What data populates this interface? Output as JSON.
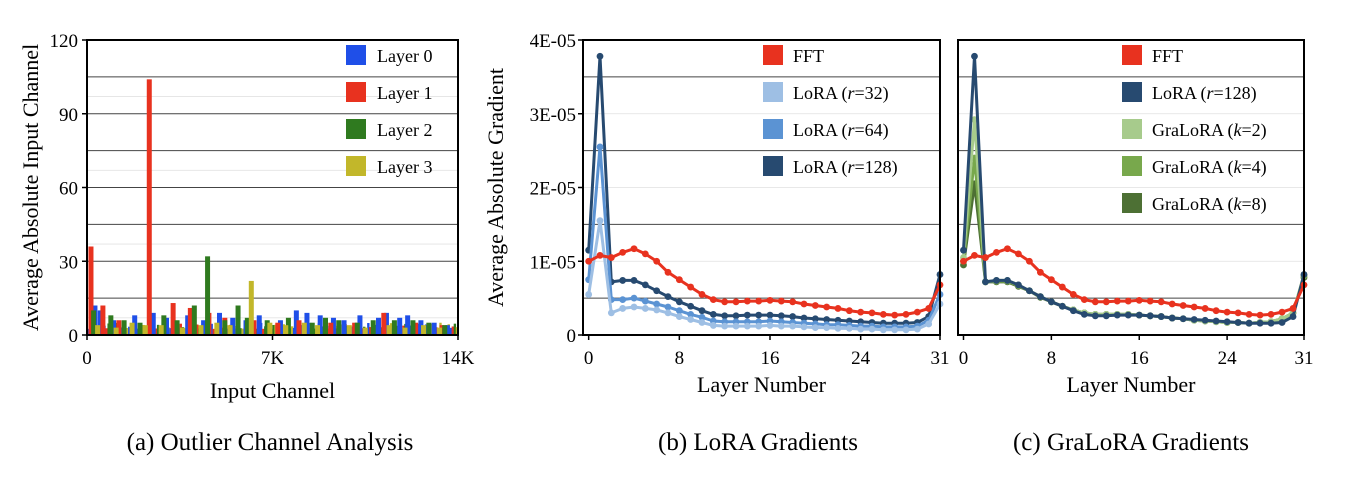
{
  "colors": {
    "layer0": "#1f4fe8",
    "layer1": "#e8321f",
    "layer2": "#2f7a1f",
    "layer3": "#c2b72a",
    "fft": "#e8321f",
    "lora32": "#9ebfe4",
    "lora64": "#5b93d3",
    "lora128": "#274a70",
    "gralora2": "#a7cb8c",
    "gralora4": "#78a84c",
    "gralora8": "#4d7034"
  },
  "captions": {
    "a": "(a)  Outlier Channel Analysis",
    "b": "(b)  LoRA Gradients",
    "c": "(c)  GraLoRA Gradients"
  },
  "chart_data": [
    {
      "type": "bar",
      "xlabel": "Input Channel",
      "ylabel": "Average Absolute Input Channel",
      "xlim": [
        0,
        14000
      ],
      "ylim": [
        0,
        120
      ],
      "x_ticks": [
        "0",
        "7K",
        "14K"
      ],
      "y_ticks": [
        "0",
        "30",
        "60",
        "90",
        "120"
      ],
      "grid": "horizontal",
      "legend_position": "top-right",
      "series": [
        {
          "name": "Layer 0",
          "color_key": "layer0",
          "x": [
            300,
            500,
            1000,
            1800,
            2500,
            3000,
            3800,
            4400,
            5000,
            5500,
            6000,
            6500,
            7300,
            7900,
            8300,
            8800,
            9300,
            9700,
            10300,
            11000,
            11300,
            11800,
            12100,
            12600,
            13100,
            13600
          ],
          "values": [
            12,
            10,
            6,
            8,
            9,
            7,
            8,
            6,
            9,
            7,
            6,
            8,
            6,
            10,
            9,
            8,
            7,
            6,
            8,
            7,
            9,
            7,
            8,
            6,
            5,
            4
          ]
        },
        {
          "name": "Layer 1",
          "color_key": "layer1",
          "x": [
            150,
            600,
            1200,
            2350,
            3250,
            3900,
            4600,
            5200,
            6300,
            7200,
            8000,
            9200,
            10100,
            11200,
            12400,
            13400
          ],
          "values": [
            36,
            12,
            6,
            104,
            13,
            11,
            9,
            7,
            6,
            5,
            6,
            5,
            5,
            9,
            5,
            4
          ]
        },
        {
          "name": "Layer 2",
          "color_key": "layer2",
          "x": [
            250,
            900,
            1400,
            2000,
            2900,
            3400,
            4050,
            4550,
            5200,
            5700,
            6050,
            6800,
            7600,
            8500,
            9000,
            9500,
            10200,
            10800,
            11600,
            12300,
            12900,
            13500
          ],
          "values": [
            10,
            8,
            6,
            5,
            8,
            6,
            12,
            32,
            6,
            12,
            7,
            6,
            7,
            5,
            7,
            6,
            5,
            6,
            6,
            6,
            5,
            4
          ]
        },
        {
          "name": "Layer 3",
          "color_key": "layer3",
          "x": [
            400,
            1100,
            1700,
            2200,
            2800,
            3600,
            4300,
            4900,
            5400,
            6200,
            6900,
            7500,
            8200,
            8700,
            9900,
            10500,
            11400,
            12000,
            12700,
            13300
          ],
          "values": [
            4,
            3,
            5,
            4,
            4,
            3,
            4,
            5,
            4,
            22,
            5,
            4,
            5,
            4,
            4,
            3,
            4,
            3,
            4,
            3
          ]
        }
      ]
    },
    {
      "type": "line",
      "xlabel": "Layer Number",
      "ylabel": "Average Absolute Gradient",
      "xlim": [
        -0.5,
        31
      ],
      "ylim": [
        0,
        4e-05
      ],
      "x_ticks": [
        0,
        8,
        16,
        24,
        31
      ],
      "y_ticks": [
        "0",
        "1E-05",
        "2E-05",
        "3E-05",
        "4E-05"
      ],
      "grid": "horizontal",
      "legend_position": "top-right",
      "x": [
        0,
        1,
        2,
        3,
        4,
        5,
        6,
        7,
        8,
        9,
        10,
        11,
        12,
        13,
        14,
        15,
        16,
        17,
        18,
        19,
        20,
        21,
        22,
        23,
        24,
        25,
        26,
        27,
        28,
        29,
        30,
        31
      ],
      "series": [
        {
          "name": "FFT",
          "color_key": "fft",
          "values": [
            1e-05,
            1.08e-05,
            1.05e-05,
            1.12e-05,
            1.17e-05,
            1.1e-05,
            1e-05,
            8.5e-06,
            7.5e-06,
            6.5e-06,
            5.5e-06,
            4.8e-06,
            4.5e-06,
            4.5e-06,
            4.6e-06,
            4.6e-06,
            4.7e-06,
            4.6e-06,
            4.5e-06,
            4.2e-06,
            4e-06,
            3.8e-06,
            3.6e-06,
            3.3e-06,
            3.1e-06,
            3e-06,
            2.8e-06,
            2.7e-06,
            2.8e-06,
            3.1e-06,
            3.6e-06,
            6.8e-06
          ]
        },
        {
          "name": "LoRA (r=32)",
          "label_pre": "LoRA (",
          "label_var": "r",
          "label_post": "=32)",
          "color_key": "lora32",
          "values": [
            5.5e-06,
            1.55e-05,
            3e-06,
            3.6e-06,
            3.8e-06,
            3.6e-06,
            3.4e-06,
            3e-06,
            2.5e-06,
            2.1e-06,
            1.7e-06,
            1.3e-06,
            1.2e-06,
            1.2e-06,
            1.2e-06,
            1.2e-06,
            1.3e-06,
            1.2e-06,
            1.2e-06,
            1.1e-06,
            1e-06,
            1e-06,
            9e-07,
            9e-07,
            8e-07,
            8e-07,
            7e-07,
            7e-07,
            7e-07,
            8e-07,
            1.5e-06,
            4.2e-06
          ]
        },
        {
          "name": "LoRA (r=64)",
          "label_pre": "LoRA (",
          "label_var": "r",
          "label_post": "=64)",
          "color_key": "lora64",
          "values": [
            7.5e-06,
            2.55e-05,
            4.8e-06,
            4.8e-06,
            5e-06,
            4.6e-06,
            4.2e-06,
            3.8e-06,
            3.3e-06,
            2.8e-06,
            2.4e-06,
            1.9e-06,
            1.8e-06,
            1.8e-06,
            1.8e-06,
            1.8e-06,
            1.9e-06,
            1.8e-06,
            1.7e-06,
            1.6e-06,
            1.5e-06,
            1.4e-06,
            1.4e-06,
            1.3e-06,
            1.2e-06,
            1.2e-06,
            1.1e-06,
            1.1e-06,
            1.1e-06,
            1.2e-06,
            2e-06,
            5.5e-06
          ]
        },
        {
          "name": "LoRA (r=128)",
          "label_pre": "LoRA (",
          "label_var": "r",
          "label_post": "=128)",
          "color_key": "lora128",
          "values": [
            1.15e-05,
            3.78e-05,
            7.2e-06,
            7.4e-06,
            7.4e-06,
            6.8e-06,
            6e-06,
            5.2e-06,
            4.5e-06,
            3.9e-06,
            3.3e-06,
            2.8e-06,
            2.6e-06,
            2.6e-06,
            2.7e-06,
            2.7e-06,
            2.7e-06,
            2.6e-06,
            2.5e-06,
            2.3e-06,
            2.2e-06,
            2.1e-06,
            2e-06,
            1.9e-06,
            1.8e-06,
            1.7e-06,
            1.6e-06,
            1.6e-06,
            1.6e-06,
            1.7e-06,
            2.5e-06,
            8.2e-06
          ]
        }
      ]
    },
    {
      "type": "line",
      "xlabel": "Layer Number",
      "ylabel": "",
      "xlim": [
        -0.5,
        31
      ],
      "ylim": [
        0,
        4e-05
      ],
      "x_ticks": [
        0,
        8,
        16,
        24,
        31
      ],
      "grid": "horizontal",
      "legend_position": "top-right",
      "x": [
        0,
        1,
        2,
        3,
        4,
        5,
        6,
        7,
        8,
        9,
        10,
        11,
        12,
        13,
        14,
        15,
        16,
        17,
        18,
        19,
        20,
        21,
        22,
        23,
        24,
        25,
        26,
        27,
        28,
        29,
        30,
        31
      ],
      "series": [
        {
          "name": "FFT",
          "color_key": "fft",
          "values": [
            1e-05,
            1.08e-05,
            1.05e-05,
            1.12e-05,
            1.17e-05,
            1.1e-05,
            1e-05,
            8.5e-06,
            7.5e-06,
            6.5e-06,
            5.5e-06,
            4.8e-06,
            4.5e-06,
            4.5e-06,
            4.6e-06,
            4.6e-06,
            4.7e-06,
            4.6e-06,
            4.5e-06,
            4.2e-06,
            4e-06,
            3.8e-06,
            3.6e-06,
            3.3e-06,
            3.1e-06,
            3e-06,
            2.8e-06,
            2.7e-06,
            2.8e-06,
            3.1e-06,
            3.6e-06,
            6.8e-06
          ]
        },
        {
          "name": "LoRA (r=128)",
          "label_pre": "LoRA (",
          "label_var": "r",
          "label_post": "=128)",
          "color_key": "lora128",
          "values": [
            1.15e-05,
            3.78e-05,
            7.2e-06,
            7.4e-06,
            7.4e-06,
            6.8e-06,
            6e-06,
            5.2e-06,
            4.5e-06,
            3.9e-06,
            3.3e-06,
            2.8e-06,
            2.6e-06,
            2.6e-06,
            2.7e-06,
            2.7e-06,
            2.7e-06,
            2.6e-06,
            2.5e-06,
            2.3e-06,
            2.2e-06,
            2.1e-06,
            2e-06,
            1.9e-06,
            1.8e-06,
            1.7e-06,
            1.6e-06,
            1.6e-06,
            1.6e-06,
            1.7e-06,
            2.5e-06,
            8.2e-06
          ]
        },
        {
          "name": "GraLoRA (k=2)",
          "label_pre": "GraLoRA (",
          "label_var": "k",
          "label_post": "=2)",
          "color_key": "gralora2",
          "values": [
            1.05e-05,
            2.92e-05,
            7.2e-06,
            7.4e-06,
            7.4e-06,
            6.8e-06,
            6e-06,
            5.2e-06,
            4.5e-06,
            3.9e-06,
            3.4e-06,
            3e-06,
            2.8e-06,
            2.8e-06,
            2.8e-06,
            2.8e-06,
            2.7e-06,
            2.6e-06,
            2.5e-06,
            2.3e-06,
            2.2e-06,
            2e-06,
            1.9e-06,
            1.8e-06,
            1.7e-06,
            1.7e-06,
            1.6e-06,
            1.7e-06,
            1.8e-06,
            2.2e-06,
            3e-06,
            8.2e-06
          ]
        },
        {
          "name": "GraLoRA (k=4)",
          "label_pre": "GraLoRA (",
          "label_var": "k",
          "label_post": "=4)",
          "color_key": "gralora4",
          "values": [
            1e-05,
            2.4e-05,
            7.2e-06,
            7.3e-06,
            7.3e-06,
            6.7e-06,
            6e-06,
            5.2e-06,
            4.5e-06,
            3.9e-06,
            3.4e-06,
            3e-06,
            2.8e-06,
            2.8e-06,
            2.8e-06,
            2.8e-06,
            2.7e-06,
            2.6e-06,
            2.5e-06,
            2.3e-06,
            2.2e-06,
            2e-06,
            1.9e-06,
            1.8e-06,
            1.7e-06,
            1.7e-06,
            1.6e-06,
            1.7e-06,
            1.8e-06,
            2.2e-06,
            3e-06,
            8e-06
          ]
        },
        {
          "name": "GraLoRA (k=8)",
          "label_pre": "GraLoRA (",
          "label_var": "k",
          "label_post": "=8)",
          "color_key": "gralora8",
          "values": [
            9.5e-06,
            2.05e-05,
            7.2e-06,
            7.2e-06,
            7.2e-06,
            6.6e-06,
            6e-06,
            5.1e-06,
            4.5e-06,
            3.9e-06,
            3.4e-06,
            3e-06,
            2.8e-06,
            2.8e-06,
            2.8e-06,
            2.8e-06,
            2.7e-06,
            2.6e-06,
            2.5e-06,
            2.3e-06,
            2.2e-06,
            2e-06,
            1.9e-06,
            1.8e-06,
            1.7e-06,
            1.7e-06,
            1.6e-06,
            1.7e-06,
            1.8e-06,
            2.2e-06,
            3e-06,
            7.8e-06
          ]
        }
      ]
    }
  ]
}
